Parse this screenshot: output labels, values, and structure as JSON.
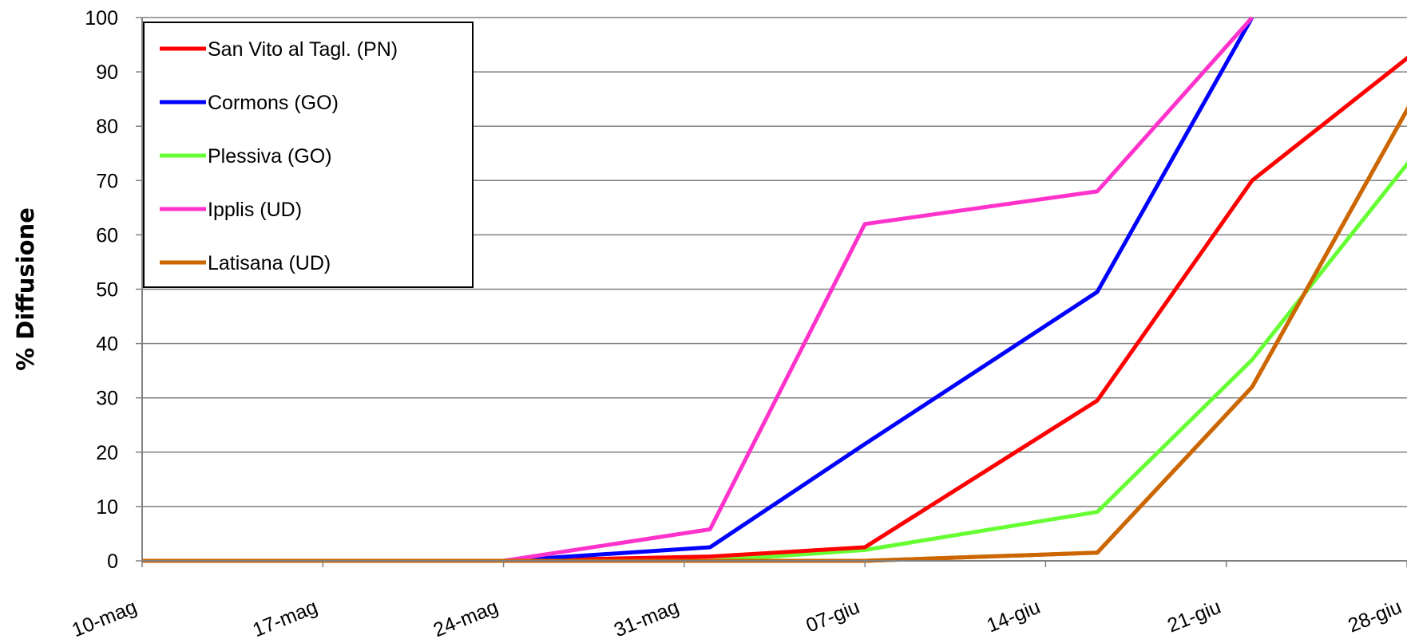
{
  "chart_data": {
    "type": "line",
    "title": "",
    "xlabel": "",
    "ylabel": "% Diffusione",
    "ylim": [
      0,
      100
    ],
    "yticks": [
      0,
      10,
      20,
      30,
      40,
      50,
      60,
      70,
      80,
      90,
      100
    ],
    "grid": true,
    "legend_position": "top-left",
    "categories": [
      "10-mag",
      "17-mag",
      "24-mag",
      "31-mag",
      "07-giu",
      "14-giu",
      "21-giu",
      "28-giu"
    ],
    "x_dates": [
      "2012-05-10",
      "2012-06-28"
    ],
    "series": [
      {
        "name": "San Vito al Tagl. (PN)",
        "color": "#ff0000",
        "x": [
          "10-mag",
          "24-mag",
          "31-mag",
          "07-giu",
          "14-giu",
          "21-giu",
          "28-giu"
        ],
        "points": [
          [
            "2012-05-10",
            0
          ],
          [
            "2012-05-24",
            0
          ],
          [
            "2012-06-01",
            0.8
          ],
          [
            "2012-06-07",
            2.5
          ],
          [
            "2012-06-16",
            29.5
          ],
          [
            "2012-06-22",
            70
          ],
          [
            "2012-06-30",
            100
          ]
        ]
      },
      {
        "name": "Cormons (GO)",
        "color": "#0000ff",
        "points": [
          [
            "2012-05-10",
            0
          ],
          [
            "2012-05-24",
            0
          ],
          [
            "2012-06-01",
            2.5
          ],
          [
            "2012-06-07",
            21.5
          ],
          [
            "2012-06-16",
            49.5
          ],
          [
            "2012-06-22",
            100
          ]
        ]
      },
      {
        "name": "Plessiva (GO)",
        "color": "#66ff33",
        "points": [
          [
            "2012-05-10",
            0
          ],
          [
            "2012-05-24",
            0
          ],
          [
            "2012-06-01",
            0
          ],
          [
            "2012-06-07",
            2
          ],
          [
            "2012-06-16",
            9
          ],
          [
            "2012-06-22",
            37
          ],
          [
            "2012-06-30",
            85
          ]
        ]
      },
      {
        "name": "Ipplis (UD)",
        "color": "#ff33cc",
        "points": [
          [
            "2012-05-10",
            0
          ],
          [
            "2012-05-24",
            0
          ],
          [
            "2012-06-01",
            5.8
          ],
          [
            "2012-06-07",
            62
          ],
          [
            "2012-06-16",
            68
          ],
          [
            "2012-06-22",
            100
          ]
        ]
      },
      {
        "name": "Latisana (UD)",
        "color": "#cc6600",
        "points": [
          [
            "2012-05-10",
            0
          ],
          [
            "2012-05-24",
            0
          ],
          [
            "2012-06-01",
            0
          ],
          [
            "2012-06-07",
            0
          ],
          [
            "2012-06-16",
            1.5
          ],
          [
            "2012-06-22",
            32
          ],
          [
            "2012-06-30",
            100
          ]
        ]
      }
    ]
  }
}
